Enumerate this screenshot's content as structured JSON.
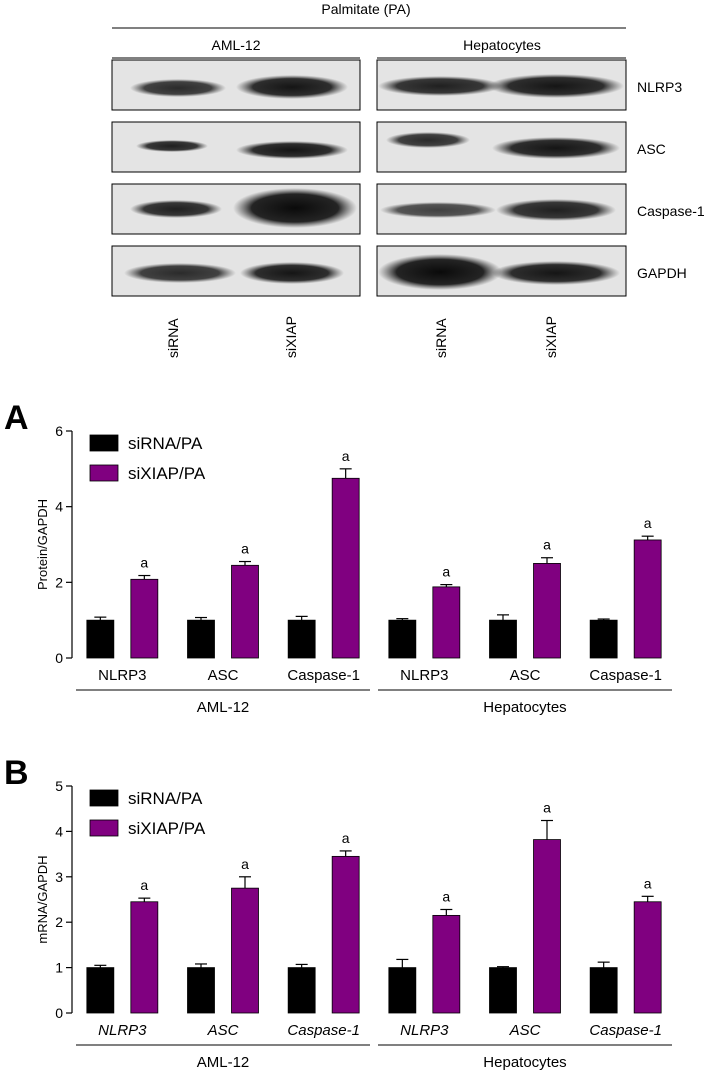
{
  "blot": {
    "title": "Palmitate (PA)",
    "groups": [
      "AML-12",
      "Hepatocytes"
    ],
    "proteins": [
      "NLRP3",
      "ASC",
      "Caspase-1",
      "GAPDH"
    ],
    "lanes": [
      "siRNA",
      "siXIAP",
      "siRNA",
      "siXIAP"
    ]
  },
  "chart_data": [
    {
      "type": "bar",
      "panel_label": "A",
      "ylabel": "Protein/GAPDH",
      "ylim": [
        0,
        6
      ],
      "yticks": [
        0,
        2,
        4,
        6
      ],
      "categories": [
        "NLRP3",
        "ASC",
        "Caspase-1",
        "NLRP3",
        "ASC",
        "Caspase-1"
      ],
      "categories_italic": false,
      "groups": [
        {
          "name": "AML-12",
          "span": [
            0,
            2
          ]
        },
        {
          "name": "Hepatocytes",
          "span": [
            3,
            5
          ]
        }
      ],
      "series": [
        {
          "name": "siRNA/PA",
          "color": "#000000",
          "values": [
            1.0,
            1.0,
            1.0,
            1.0,
            1.0,
            1.0
          ],
          "errors": [
            0.08,
            0.07,
            0.1,
            0.04,
            0.14,
            0.03
          ]
        },
        {
          "name": "siXIAP/PA",
          "color": "#800080",
          "values": [
            2.08,
            2.45,
            4.75,
            1.88,
            2.5,
            3.12
          ],
          "errors": [
            0.1,
            0.1,
            0.25,
            0.06,
            0.15,
            0.1
          ]
        }
      ],
      "annotations": [
        "a",
        "a",
        "a",
        "a",
        "a",
        "a"
      ],
      "legend_position": "top-left"
    },
    {
      "type": "bar",
      "panel_label": "B",
      "ylabel": "mRNA/GAPDH",
      "ylim": [
        0,
        5
      ],
      "yticks": [
        0,
        1,
        2,
        3,
        4,
        5
      ],
      "categories": [
        "NLRP3",
        "ASC",
        "Caspase-1",
        "NLRP3",
        "ASC",
        "Caspase-1"
      ],
      "categories_italic": true,
      "groups": [
        {
          "name": "AML-12",
          "span": [
            0,
            2
          ]
        },
        {
          "name": "Hepatocytes",
          "span": [
            3,
            5
          ]
        }
      ],
      "series": [
        {
          "name": "siRNA/PA",
          "color": "#000000",
          "values": [
            1.0,
            1.0,
            1.0,
            1.0,
            1.0,
            1.0
          ],
          "errors": [
            0.05,
            0.08,
            0.07,
            0.18,
            0.02,
            0.12
          ]
        },
        {
          "name": "siXIAP/PA",
          "color": "#800080",
          "values": [
            2.45,
            2.75,
            3.45,
            2.15,
            3.82,
            2.45
          ],
          "errors": [
            0.08,
            0.25,
            0.12,
            0.13,
            0.42,
            0.12
          ]
        }
      ],
      "annotations": [
        "a",
        "a",
        "a",
        "a",
        "a",
        "a"
      ],
      "legend_position": "top-left"
    }
  ]
}
